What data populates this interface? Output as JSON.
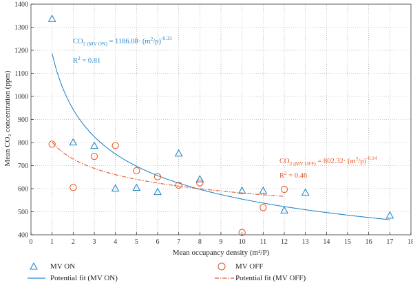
{
  "colors": {
    "mv_on": "#2a88c6",
    "mv_off": "#e2592a",
    "grid": "#9a9a9a",
    "axis": "#333333"
  },
  "chart_data": {
    "type": "scatter",
    "title": "",
    "xlabel": "Mean occupancy density (m²/P)",
    "ylabel": "Mean CO₂ concentration (ppm)",
    "xlim": [
      0,
      18
    ],
    "ylim": [
      400,
      1400
    ],
    "x_ticks": [
      0,
      1,
      2,
      3,
      4,
      5,
      6,
      7,
      8,
      9,
      10,
      11,
      12,
      13,
      14,
      15,
      16,
      17,
      18
    ],
    "y_ticks": [
      400,
      500,
      600,
      700,
      800,
      900,
      1000,
      1100,
      1200,
      1300,
      1400
    ],
    "grid": true,
    "series": [
      {
        "name": "MV ON",
        "marker": "triangle",
        "color": "#2a88c6",
        "points": [
          [
            1,
            1335
          ],
          [
            2,
            800
          ],
          [
            3,
            785
          ],
          [
            4,
            600
          ],
          [
            5,
            603
          ],
          [
            6,
            585
          ],
          [
            7,
            752
          ],
          [
            8,
            640
          ],
          [
            10,
            590
          ],
          [
            11,
            590
          ],
          [
            12,
            505
          ],
          [
            13,
            582
          ],
          [
            17,
            483
          ]
        ]
      },
      {
        "name": "MV OFF",
        "marker": "circle",
        "color": "#e2592a",
        "points": [
          [
            1,
            793
          ],
          [
            2,
            605
          ],
          [
            3,
            740
          ],
          [
            4,
            787
          ],
          [
            5,
            678
          ],
          [
            6,
            652
          ],
          [
            7,
            615
          ],
          [
            8,
            625
          ],
          [
            10,
            410
          ],
          [
            11,
            518
          ],
          [
            12,
            597
          ]
        ]
      }
    ],
    "fits": [
      {
        "name": "Potential fit (MV ON)",
        "color": "#2a88c6",
        "style": "solid",
        "coef": 1186.08,
        "exp": -0.33,
        "x_range": [
          1,
          17
        ]
      },
      {
        "name": "Potential fit (MV OFF)",
        "color": "#e2592a",
        "style": "dashdot",
        "coef": 802.32,
        "exp": -0.14,
        "x_range": [
          1,
          12
        ]
      }
    ],
    "annotations": [
      {
        "eq_main": "CO",
        "eq_sub": "2 (MV ON)",
        "eq_rest": " = 1186.08",
        "eq_tail": "· (m",
        "eq_sup1": "2",
        "eq_tail2": "/p)",
        "eq_sup2": "-0.33",
        "r2_main": "R",
        "r2_sup": "2",
        "r2_val": " = 0.81",
        "color": "#2a88c6"
      },
      {
        "eq_main": "CO",
        "eq_sub": "2 (MV OFF)",
        "eq_rest": " = 802.32",
        "eq_tail": "· (m",
        "eq_sup1": "2",
        "eq_tail2": "/p)",
        "eq_sup2": "-0.14",
        "r2_main": "R",
        "r2_sup": "2",
        "r2_val": " = 0.46",
        "color": "#e2592a"
      }
    ],
    "legend": {
      "placement": "bottom",
      "items": [
        "MV ON",
        "MV OFF",
        "Potential fit (MV ON)",
        "Potential fit (MV OFF)"
      ]
    }
  }
}
